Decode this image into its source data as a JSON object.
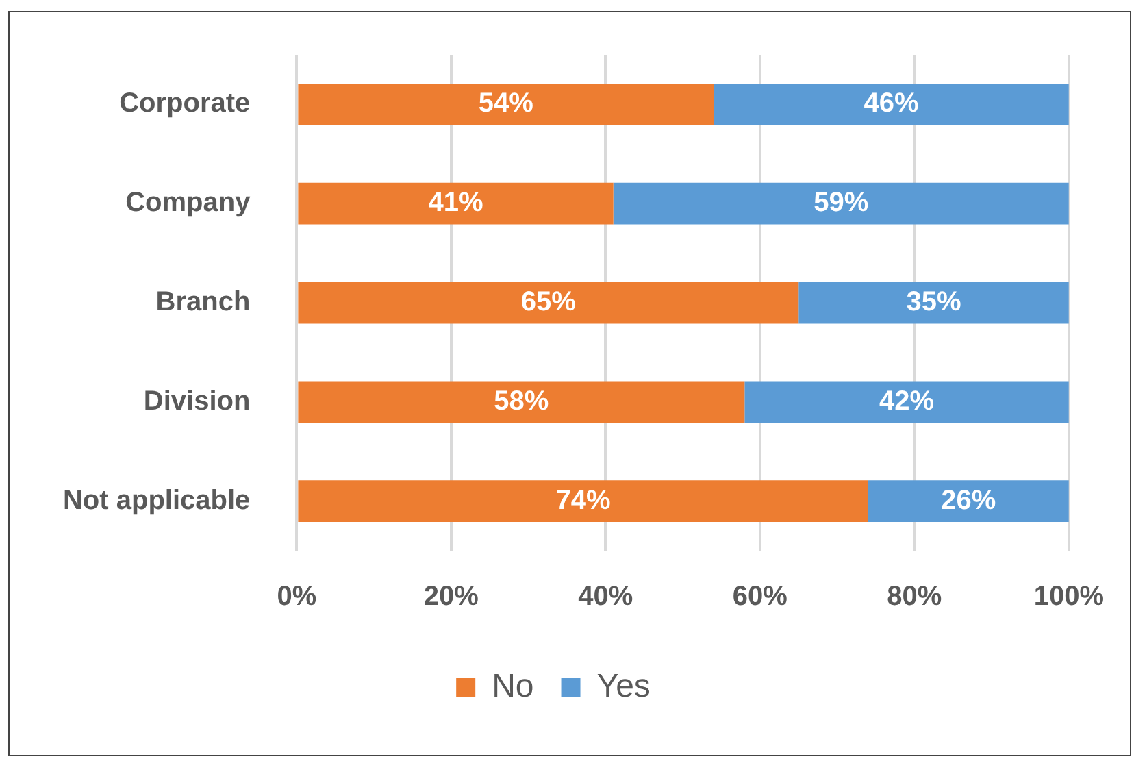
{
  "chart_data": {
    "type": "bar",
    "orientation": "horizontal",
    "stacked": true,
    "categories": [
      "Corporate",
      "Company",
      "Branch",
      "Division",
      "Not applicable"
    ],
    "series": [
      {
        "name": "No",
        "color": "#ed7d31",
        "values": [
          54,
          41,
          65,
          58,
          74
        ],
        "value_labels": [
          "54%",
          "41%",
          "65%",
          "58%",
          "74%"
        ]
      },
      {
        "name": "Yes",
        "color": "#5b9bd5",
        "values": [
          46,
          59,
          35,
          42,
          26
        ],
        "value_labels": [
          "46%",
          "59%",
          "35%",
          "42%",
          "26%"
        ]
      }
    ],
    "xlim": [
      0,
      100
    ],
    "xticks": [
      {
        "value": 0,
        "label": "0%"
      },
      {
        "value": 20,
        "label": "20%"
      },
      {
        "value": 40,
        "label": "40%"
      },
      {
        "value": 60,
        "label": "60%"
      },
      {
        "value": 80,
        "label": "80%"
      },
      {
        "value": 100,
        "label": "100%"
      }
    ],
    "grid": "x",
    "legend": "bottom"
  }
}
